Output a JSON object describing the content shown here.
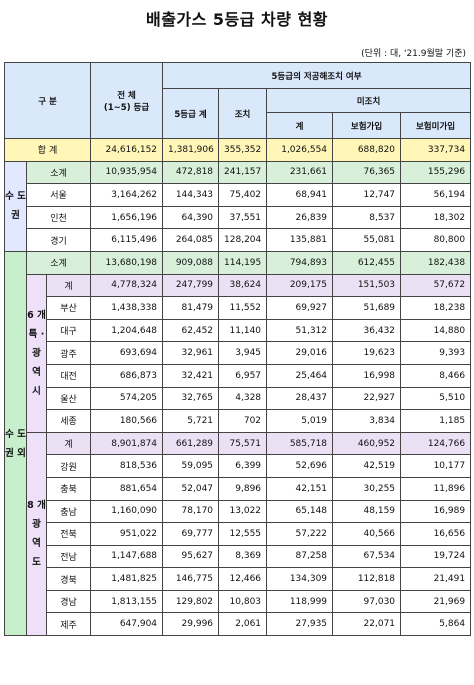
{
  "title": "배출가스 5등급 차량 현황",
  "unit": "(단위 : 대, '21.9월말 기준)",
  "header": {
    "category": "구 분",
    "total_line1": "전 체",
    "total_line2": "(1~5) 등급",
    "grade5_group": "5등급의 저공해조치 여부",
    "grade5_total": "5등급 계",
    "measures": "조치",
    "no_measures": "미조치",
    "nm_total": "계",
    "insured": "보험가입",
    "uninsured": "보험미가입"
  },
  "grand_total": {
    "label": "합 계",
    "v": [
      "24,616,152",
      "1,381,906",
      "355,352",
      "1,026,554",
      "688,820",
      "337,734"
    ]
  },
  "capital": {
    "label": "수 도 권",
    "rows": [
      {
        "name": "소계",
        "v": [
          "10,935,954",
          "472,818",
          "241,157",
          "231,661",
          "76,365",
          "155,296"
        ]
      },
      {
        "name": "서울",
        "v": [
          "3,164,262",
          "144,343",
          "75,402",
          "68,941",
          "12,747",
          "56,194"
        ]
      },
      {
        "name": "인천",
        "v": [
          "1,656,196",
          "64,390",
          "37,551",
          "26,839",
          "8,537",
          "18,302"
        ]
      },
      {
        "name": "경기",
        "v": [
          "6,115,496",
          "264,085",
          "128,204",
          "135,881",
          "55,081",
          "80,800"
        ]
      }
    ]
  },
  "noncapital": {
    "label": "수 도 권 외",
    "subtotal": {
      "name": "소계",
      "v": [
        "13,680,198",
        "909,088",
        "114,195",
        "794,893",
        "612,455",
        "182,438"
      ]
    },
    "metro": {
      "label": "6 개 특 · 광 역 시",
      "rows": [
        {
          "name": "계",
          "v": [
            "4,778,324",
            "247,799",
            "38,624",
            "209,175",
            "151,503",
            "57,672"
          ]
        },
        {
          "name": "부산",
          "v": [
            "1,438,338",
            "81,479",
            "11,552",
            "69,927",
            "51,689",
            "18,238"
          ]
        },
        {
          "name": "대구",
          "v": [
            "1,204,648",
            "62,452",
            "11,140",
            "51,312",
            "36,432",
            "14,880"
          ]
        },
        {
          "name": "광주",
          "v": [
            "693,694",
            "32,961",
            "3,945",
            "29,016",
            "19,623",
            "9,393"
          ]
        },
        {
          "name": "대전",
          "v": [
            "686,873",
            "32,421",
            "6,957",
            "25,464",
            "16,998",
            "8,466"
          ]
        },
        {
          "name": "울산",
          "v": [
            "574,205",
            "32,765",
            "4,328",
            "28,437",
            "22,927",
            "5,510"
          ]
        },
        {
          "name": "세종",
          "v": [
            "180,566",
            "5,721",
            "702",
            "5,019",
            "3,834",
            "1,185"
          ]
        }
      ]
    },
    "province": {
      "label": "8 개 광 역 도",
      "rows": [
        {
          "name": "계",
          "v": [
            "8,901,874",
            "661,289",
            "75,571",
            "585,718",
            "460,952",
            "124,766"
          ]
        },
        {
          "name": "강원",
          "v": [
            "818,536",
            "59,095",
            "6,399",
            "52,696",
            "42,519",
            "10,177"
          ]
        },
        {
          "name": "충북",
          "v": [
            "881,654",
            "52,047",
            "9,896",
            "42,151",
            "30,255",
            "11,896"
          ]
        },
        {
          "name": "충남",
          "v": [
            "1,160,090",
            "78,170",
            "13,022",
            "65,148",
            "48,159",
            "16,989"
          ]
        },
        {
          "name": "전북",
          "v": [
            "951,022",
            "69,777",
            "12,555",
            "57,222",
            "40,566",
            "16,656"
          ]
        },
        {
          "name": "전남",
          "v": [
            "1,147,688",
            "95,627",
            "8,369",
            "87,258",
            "67,534",
            "19,724"
          ]
        },
        {
          "name": "경북",
          "v": [
            "1,481,825",
            "146,775",
            "12,466",
            "134,309",
            "112,818",
            "21,491"
          ]
        },
        {
          "name": "경남",
          "v": [
            "1,813,155",
            "129,802",
            "10,803",
            "118,999",
            "97,030",
            "21,969"
          ]
        },
        {
          "name": "제주",
          "v": [
            "647,904",
            "29,996",
            "2,061",
            "27,935",
            "22,071",
            "5,864"
          ]
        }
      ]
    }
  }
}
